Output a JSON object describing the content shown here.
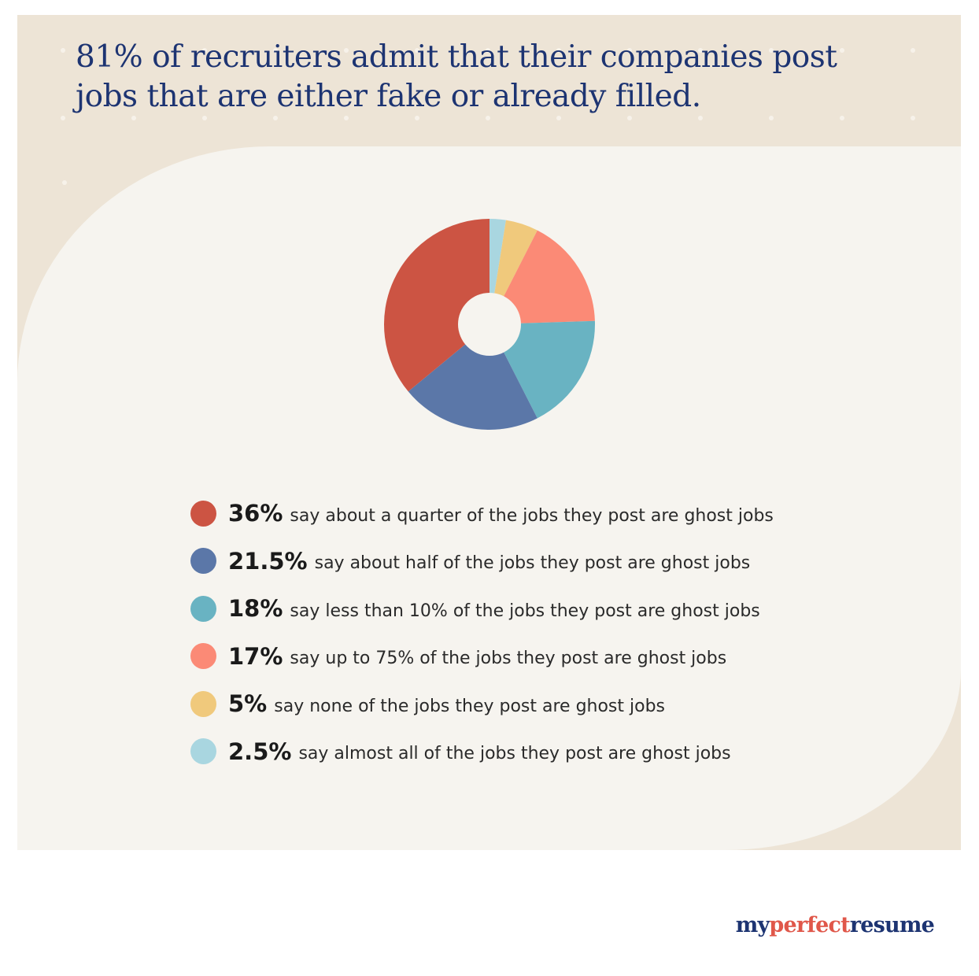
{
  "title": "81% of recruiters admit that their companies post jobs that are either fake or already filled.",
  "brand": {
    "part1": "my",
    "part2": "perfect",
    "part3": "resume"
  },
  "chart_data": {
    "type": "pie",
    "donut": true,
    "title": "81% of recruiters admit that their companies post jobs that are either fake or already filled.",
    "legend_position": "bottom",
    "series": [
      {
        "value": 36,
        "label": "36%",
        "desc": "say about a quarter of the jobs they post are ghost jobs",
        "color": "#cc5443"
      },
      {
        "value": 21.5,
        "label": "21.5%",
        "desc": "say about half of the jobs they post are ghost jobs",
        "color": "#5b77a8"
      },
      {
        "value": 18,
        "label": "18%",
        "desc": "say less than 10% of the jobs they post are ghost jobs",
        "color": "#69b3c2"
      },
      {
        "value": 17,
        "label": "17%",
        "desc": "say up to 75% of the jobs they post are ghost jobs",
        "color": "#fb8a76"
      },
      {
        "value": 5,
        "label": "5%",
        "desc": "say none of the jobs they post are ghost jobs",
        "color": "#f0c97c"
      },
      {
        "value": 2.5,
        "label": "2.5%",
        "desc": "say almost all of the jobs they post are ghost jobs",
        "color": "#a9d6e0"
      }
    ]
  }
}
